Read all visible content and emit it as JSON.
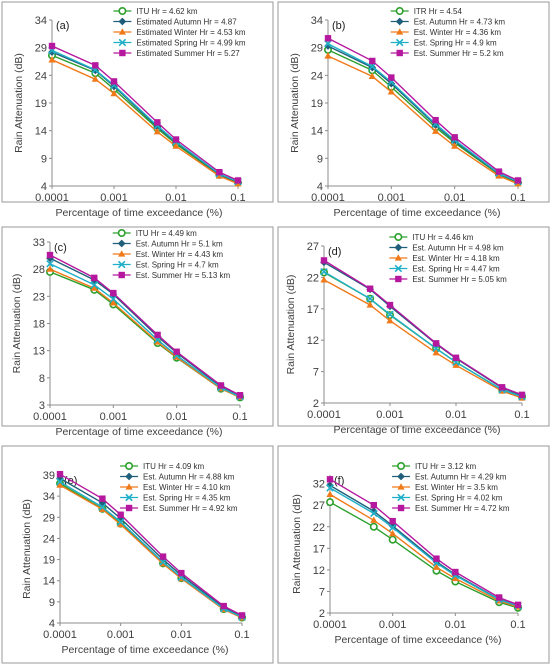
{
  "colors": {
    "itu": "#2ca02c",
    "autumn": "#1f5f7a",
    "winter": "#f07a1a",
    "spring": "#1fb0c8",
    "summer": "#b5179e"
  },
  "markers": [
    "circle",
    "diamond",
    "triangle",
    "x",
    "square"
  ],
  "chart_data": [
    {
      "type": "line",
      "panel": "(a)",
      "xlabel": "Percentage of time exceedance (%)",
      "ylabel": "Rain Attenuation (dB)",
      "xscale": "log",
      "x": [
        0.0001,
        0.0005,
        0.001,
        0.005,
        0.01,
        0.05,
        0.1
      ],
      "xticks": [
        {
          "v": 0.0001,
          "label": "0.0001"
        },
        {
          "v": 0.001,
          "label": "0.001"
        },
        {
          "v": 0.01,
          "label": "0.01"
        },
        {
          "v": 0.1,
          "label": "0.1"
        }
      ],
      "ylim": [
        4,
        34
      ],
      "yticks": [
        {
          "v": 4,
          "label": "4"
        },
        {
          "v": 9,
          "label": "9"
        },
        {
          "v": 14,
          "label": "14"
        },
        {
          "v": 19,
          "label": "19"
        },
        {
          "v": 24,
          "label": "24"
        },
        {
          "v": 29,
          "label": "29"
        },
        {
          "v": 34,
          "label": "34"
        }
      ],
      "series": [
        {
          "name": "ITU Hr = 4.62 km",
          "values": [
            27.6,
            24.4,
            21.5,
            14.4,
            11.6,
            6.0,
            4.6
          ]
        },
        {
          "name": "Estimated Autumn Hr = 4.87",
          "values": [
            28.2,
            24.9,
            22.0,
            14.7,
            11.9,
            6.1,
            4.7
          ]
        },
        {
          "name": "Estimated Winter Hr = 4.53 km",
          "values": [
            26.8,
            23.3,
            20.7,
            13.8,
            11.2,
            5.8,
            4.4
          ]
        },
        {
          "name": "Estimated Spring Hr = 4.99 km",
          "values": [
            28.5,
            25.0,
            22.2,
            14.9,
            12.0,
            6.2,
            4.8
          ]
        },
        {
          "name": "Estimated Summer Hr = 5.27",
          "values": [
            29.3,
            25.8,
            22.9,
            15.5,
            12.4,
            6.5,
            5.0
          ]
        }
      ]
    },
    {
      "type": "line",
      "panel": "(b)",
      "xlabel": "Percentage of time exceedance (%)",
      "ylabel": "Rain Attenuation (dB)",
      "xscale": "log",
      "x": [
        0.0001,
        0.0005,
        0.001,
        0.005,
        0.01,
        0.05,
        0.1
      ],
      "xticks": [
        {
          "v": 0.0001,
          "label": "0.0001"
        },
        {
          "v": 0.001,
          "label": "0.001"
        },
        {
          "v": 0.01,
          "label": "0.01"
        },
        {
          "v": 0.1,
          "label": "0.1"
        }
      ],
      "ylim": [
        4,
        34
      ],
      "yticks": [
        {
          "v": 4,
          "label": "4"
        },
        {
          "v": 9,
          "label": "9"
        },
        {
          "v": 14,
          "label": "14"
        },
        {
          "v": 19,
          "label": "19"
        },
        {
          "v": 24,
          "label": "24"
        },
        {
          "v": 29,
          "label": "29"
        },
        {
          "v": 34,
          "label": "34"
        }
      ],
      "series": [
        {
          "name": "ITR Hr = 4.54",
          "values": [
            28.6,
            24.9,
            21.9,
            14.6,
            11.8,
            6.1,
            4.6
          ]
        },
        {
          "name": "Est. Autumn Hr = 4.73 km",
          "values": [
            29.3,
            25.4,
            22.5,
            15.0,
            12.1,
            6.2,
            4.7
          ]
        },
        {
          "name": "Est. Winter Hr = 4.36 km",
          "values": [
            27.5,
            23.8,
            21.0,
            13.9,
            11.2,
            5.8,
            4.4
          ]
        },
        {
          "name": "Est. Spring Hr = 4.9 km",
          "values": [
            29.7,
            25.6,
            22.8,
            15.2,
            12.3,
            6.3,
            4.8
          ]
        },
        {
          "name": "Est. Summer Hr = 5.2 km",
          "values": [
            30.7,
            26.6,
            23.6,
            15.9,
            12.8,
            6.6,
            5.0
          ]
        }
      ]
    },
    {
      "type": "line",
      "panel": "(c)",
      "xlabel": "Percentage of time exceedance (%)",
      "ylabel": "Rain Attenuation (dB)",
      "xscale": "log",
      "x": [
        0.0001,
        0.0005,
        0.001,
        0.005,
        0.01,
        0.05,
        0.1
      ],
      "xticks": [
        {
          "v": 0.0001,
          "label": "0.0001"
        },
        {
          "v": 0.001,
          "label": "0.001"
        },
        {
          "v": 0.01,
          "label": "0.01"
        },
        {
          "v": 0.1,
          "label": "0.1"
        }
      ],
      "ylim": [
        3,
        33
      ],
      "yticks": [
        {
          "v": 3,
          "label": "3"
        },
        {
          "v": 8,
          "label": "8"
        },
        {
          "v": 13,
          "label": "13"
        },
        {
          "v": 18,
          "label": "18"
        },
        {
          "v": 23,
          "label": "23"
        },
        {
          "v": 28,
          "label": "28"
        },
        {
          "v": 33,
          "label": "33"
        }
      ],
      "series": [
        {
          "name": "ITU Hr = 4.49 km",
          "values": [
            27.5,
            24.2,
            21.5,
            14.4,
            11.7,
            6.0,
            4.4
          ]
        },
        {
          "name": "Est. Autumn Hr = 5.1 km",
          "values": [
            30.0,
            26.0,
            23.4,
            15.6,
            12.6,
            6.4,
            4.7
          ]
        },
        {
          "name": "Est. Winter Hr = 4.43 km",
          "values": [
            28.0,
            24.5,
            21.8,
            14.6,
            11.8,
            6.0,
            4.4
          ]
        },
        {
          "name": "Est. Spring Hr = 4.7 km",
          "values": [
            29.0,
            25.1,
            22.5,
            15.0,
            12.1,
            6.2,
            4.5
          ]
        },
        {
          "name": "Est. Summer Hr = 5.13 km",
          "values": [
            30.6,
            26.4,
            23.6,
            15.9,
            12.8,
            6.6,
            4.8
          ]
        }
      ]
    },
    {
      "type": "line",
      "panel": "(d)",
      "xlabel": "Percentage of time exceedance (%)",
      "ylabel": "Rain Attenuation (dB)",
      "xscale": "log",
      "x": [
        0.0001,
        0.0005,
        0.001,
        0.005,
        0.01,
        0.05,
        0.1
      ],
      "xticks": [
        {
          "v": 0.0001,
          "label": "0.0001"
        },
        {
          "v": 0.001,
          "label": "0.001"
        },
        {
          "v": 0.01,
          "label": "0.01"
        },
        {
          "v": 0.1,
          "label": "0.1"
        }
      ],
      "ylim": [
        2,
        27
      ],
      "yticks": [
        {
          "v": 2,
          "label": "2"
        },
        {
          "v": 7,
          "label": "7"
        },
        {
          "v": 12,
          "label": "12"
        },
        {
          "v": 17,
          "label": "17"
        },
        {
          "v": 22,
          "label": "22"
        },
        {
          "v": 27,
          "label": "27"
        }
      ],
      "series": [
        {
          "name": "ITU Hr = 4.46 km",
          "values": [
            22.8,
            18.6,
            16.0,
            10.7,
            8.5,
            4.1,
            3.0
          ]
        },
        {
          "name": "Est. Autumn Hr = 4.98 km",
          "values": [
            24.4,
            20.1,
            17.4,
            11.4,
            9.1,
            4.4,
            3.2
          ]
        },
        {
          "name": "Est. Winter Hr = 4.18 km",
          "values": [
            21.6,
            17.6,
            15.1,
            10.0,
            8.0,
            3.9,
            2.8
          ]
        },
        {
          "name": "Est. Spring Hr = 4.47 km",
          "values": [
            22.9,
            18.6,
            16.1,
            10.7,
            8.5,
            4.1,
            3.0
          ]
        },
        {
          "name": "Est. Summer Hr = 5.05 km",
          "values": [
            24.7,
            20.2,
            17.6,
            11.5,
            9.2,
            4.5,
            3.3
          ]
        }
      ]
    },
    {
      "type": "line",
      "panel": "(e)",
      "xlabel": "Percentage of time exceedance (%)",
      "ylabel": "Rain Attenuation (dB)",
      "xscale": "log",
      "x": [
        0.0001,
        0.0005,
        0.001,
        0.005,
        0.01,
        0.05,
        0.1
      ],
      "xticks": [
        {
          "v": 0.0001,
          "label": "0.0001"
        },
        {
          "v": 0.001,
          "label": "0.001"
        },
        {
          "v": 0.01,
          "label": "0.01"
        },
        {
          "v": 0.1,
          "label": "0.1"
        }
      ],
      "ylim": [
        4,
        39
      ],
      "yticks": [
        {
          "v": 4,
          "label": "4"
        },
        {
          "v": 9,
          "label": "9"
        },
        {
          "v": 14,
          "label": "14"
        },
        {
          "v": 19,
          "label": "19"
        },
        {
          "v": 24,
          "label": "24"
        },
        {
          "v": 29,
          "label": "29"
        },
        {
          "v": 34,
          "label": "34"
        },
        {
          "v": 39,
          "label": "39"
        }
      ],
      "series": [
        {
          "name": "ITU Hr = 4.09 km",
          "values": [
            37.0,
            31.0,
            27.5,
            18.1,
            14.6,
            7.3,
            5.3
          ]
        },
        {
          "name": "Est. Autumn Hr = 4.88 km",
          "values": [
            38.2,
            32.4,
            28.7,
            19.0,
            15.3,
            7.7,
            5.6
          ]
        },
        {
          "name": "Est. Winter Hr = 4.10 km",
          "values": [
            36.6,
            30.9,
            27.3,
            18.0,
            14.5,
            7.2,
            5.2
          ]
        },
        {
          "name": "Est. Spring Hr = 4.35 km",
          "values": [
            37.4,
            31.4,
            27.9,
            18.4,
            14.8,
            7.4,
            5.4
          ]
        },
        {
          "name": "Est. Summer Hr = 4.92 km",
          "values": [
            39.2,
            33.4,
            29.6,
            19.7,
            15.8,
            8.0,
            5.8
          ]
        }
      ]
    },
    {
      "type": "line",
      "panel": "(f)",
      "xlabel": "Percentage of time exceedance (%)",
      "ylabel": "Rain Attenuation (dB)",
      "xscale": "log",
      "x": [
        0.0001,
        0.0005,
        0.001,
        0.005,
        0.01,
        0.05,
        0.1
      ],
      "xticks": [
        {
          "v": 0.0001,
          "label": "0.0001"
        },
        {
          "v": 0.001,
          "label": "0.001"
        },
        {
          "v": 0.01,
          "label": "0.01"
        },
        {
          "v": 0.1,
          "label": "0.1"
        }
      ],
      "ylim": [
        2,
        34
      ],
      "yticks": [
        {
          "v": 2,
          "label": "2"
        },
        {
          "v": 7,
          "label": "7"
        },
        {
          "v": 12,
          "label": "12"
        },
        {
          "v": 17,
          "label": "17"
        },
        {
          "v": 22,
          "label": "22"
        },
        {
          "v": 27,
          "label": "27"
        },
        {
          "v": 32,
          "label": "32"
        }
      ],
      "series": [
        {
          "name": "ITU Hr = 3.12 km",
          "values": [
            27.7,
            22.0,
            19.0,
            11.8,
            9.3,
            4.5,
            3.2
          ]
        },
        {
          "name": "Est. Autumn Hr = 4.29 km",
          "values": [
            31.6,
            25.6,
            22.2,
            13.9,
            10.9,
            5.2,
            3.7
          ]
        },
        {
          "name": "Est. Winter Hr = 3.5 km",
          "values": [
            29.5,
            23.5,
            20.4,
            12.6,
            10.0,
            4.8,
            3.4
          ]
        },
        {
          "name": "Est. Spring Hr = 4.02 km",
          "values": [
            31.0,
            25.1,
            21.8,
            13.6,
            10.7,
            5.1,
            3.6
          ]
        },
        {
          "name": "Est. Summer Hr = 4.72 km",
          "values": [
            33.0,
            27.0,
            23.3,
            14.6,
            11.5,
            5.6,
            3.9
          ]
        }
      ]
    }
  ]
}
